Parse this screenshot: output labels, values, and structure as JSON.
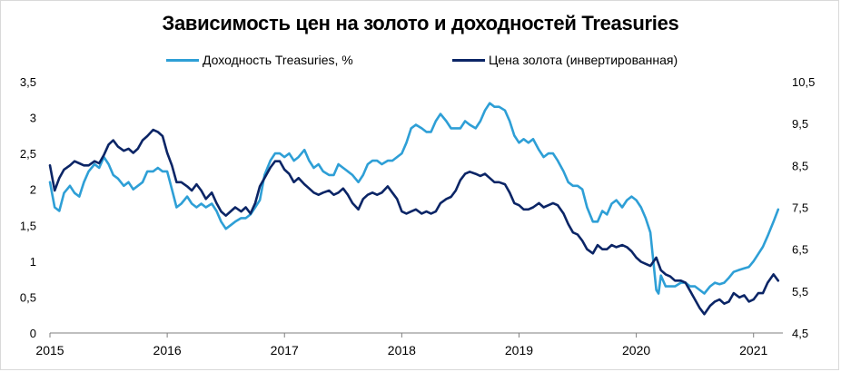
{
  "chart_data": {
    "type": "line",
    "title": "Зависимость цен на золото и доходностей Treasuries",
    "legend_position": "top-center",
    "x_ticks": [
      "2015",
      "2016",
      "2017",
      "2018",
      "2019",
      "2020",
      "2021"
    ],
    "x_range": [
      2015.0,
      2021.25
    ],
    "y_left": {
      "ticks": [
        "0",
        "0,5",
        "1",
        "1,5",
        "2",
        "2,5",
        "3",
        "3,5"
      ],
      "range": [
        0,
        3.5
      ]
    },
    "y_right": {
      "ticks": [
        "4,5",
        "5,5",
        "6,5",
        "7,5",
        "8,5",
        "9,5",
        "10,5"
      ],
      "range": [
        4.5,
        10.5
      ],
      "inverted_series": true
    },
    "grid": false,
    "series": [
      {
        "name": "Доходность Treasuries, %",
        "axis": "left",
        "color": "#2e9fd6",
        "points": [
          [
            2015.0,
            2.1
          ],
          [
            2015.04,
            1.75
          ],
          [
            2015.08,
            1.7
          ],
          [
            2015.12,
            1.95
          ],
          [
            2015.17,
            2.05
          ],
          [
            2015.21,
            1.95
          ],
          [
            2015.25,
            1.9
          ],
          [
            2015.29,
            2.1
          ],
          [
            2015.33,
            2.25
          ],
          [
            2015.38,
            2.35
          ],
          [
            2015.42,
            2.3
          ],
          [
            2015.46,
            2.45
          ],
          [
            2015.5,
            2.35
          ],
          [
            2015.54,
            2.2
          ],
          [
            2015.58,
            2.15
          ],
          [
            2015.63,
            2.05
          ],
          [
            2015.67,
            2.1
          ],
          [
            2015.71,
            2.0
          ],
          [
            2015.75,
            2.05
          ],
          [
            2015.79,
            2.1
          ],
          [
            2015.83,
            2.25
          ],
          [
            2015.88,
            2.25
          ],
          [
            2015.92,
            2.3
          ],
          [
            2015.96,
            2.25
          ],
          [
            2016.0,
            2.25
          ],
          [
            2016.04,
            2.0
          ],
          [
            2016.08,
            1.75
          ],
          [
            2016.12,
            1.8
          ],
          [
            2016.17,
            1.9
          ],
          [
            2016.21,
            1.8
          ],
          [
            2016.25,
            1.75
          ],
          [
            2016.29,
            1.8
          ],
          [
            2016.33,
            1.75
          ],
          [
            2016.38,
            1.8
          ],
          [
            2016.42,
            1.7
          ],
          [
            2016.46,
            1.55
          ],
          [
            2016.5,
            1.45
          ],
          [
            2016.54,
            1.5
          ],
          [
            2016.58,
            1.55
          ],
          [
            2016.63,
            1.6
          ],
          [
            2016.67,
            1.6
          ],
          [
            2016.71,
            1.65
          ],
          [
            2016.75,
            1.75
          ],
          [
            2016.79,
            1.85
          ],
          [
            2016.83,
            2.2
          ],
          [
            2016.88,
            2.4
          ],
          [
            2016.92,
            2.5
          ],
          [
            2016.96,
            2.5
          ],
          [
            2017.0,
            2.45
          ],
          [
            2017.04,
            2.5
          ],
          [
            2017.08,
            2.4
          ],
          [
            2017.12,
            2.45
          ],
          [
            2017.17,
            2.55
          ],
          [
            2017.21,
            2.4
          ],
          [
            2017.25,
            2.3
          ],
          [
            2017.29,
            2.35
          ],
          [
            2017.33,
            2.25
          ],
          [
            2017.38,
            2.2
          ],
          [
            2017.42,
            2.2
          ],
          [
            2017.46,
            2.35
          ],
          [
            2017.5,
            2.3
          ],
          [
            2017.54,
            2.25
          ],
          [
            2017.58,
            2.2
          ],
          [
            2017.63,
            2.1
          ],
          [
            2017.67,
            2.2
          ],
          [
            2017.71,
            2.35
          ],
          [
            2017.75,
            2.4
          ],
          [
            2017.79,
            2.4
          ],
          [
            2017.83,
            2.35
          ],
          [
            2017.88,
            2.4
          ],
          [
            2017.92,
            2.4
          ],
          [
            2017.96,
            2.45
          ],
          [
            2018.0,
            2.5
          ],
          [
            2018.04,
            2.65
          ],
          [
            2018.08,
            2.85
          ],
          [
            2018.12,
            2.9
          ],
          [
            2018.17,
            2.85
          ],
          [
            2018.21,
            2.8
          ],
          [
            2018.25,
            2.8
          ],
          [
            2018.29,
            2.95
          ],
          [
            2018.33,
            3.05
          ],
          [
            2018.38,
            2.95
          ],
          [
            2018.42,
            2.85
          ],
          [
            2018.46,
            2.85
          ],
          [
            2018.5,
            2.85
          ],
          [
            2018.54,
            2.95
          ],
          [
            2018.58,
            2.9
          ],
          [
            2018.63,
            2.85
          ],
          [
            2018.67,
            2.95
          ],
          [
            2018.71,
            3.1
          ],
          [
            2018.75,
            3.2
          ],
          [
            2018.79,
            3.15
          ],
          [
            2018.83,
            3.15
          ],
          [
            2018.88,
            3.1
          ],
          [
            2018.92,
            2.95
          ],
          [
            2018.96,
            2.75
          ],
          [
            2019.0,
            2.65
          ],
          [
            2019.04,
            2.7
          ],
          [
            2019.08,
            2.65
          ],
          [
            2019.12,
            2.7
          ],
          [
            2019.17,
            2.55
          ],
          [
            2019.21,
            2.45
          ],
          [
            2019.25,
            2.5
          ],
          [
            2019.29,
            2.5
          ],
          [
            2019.33,
            2.4
          ],
          [
            2019.38,
            2.25
          ],
          [
            2019.42,
            2.1
          ],
          [
            2019.46,
            2.05
          ],
          [
            2019.5,
            2.05
          ],
          [
            2019.54,
            2.0
          ],
          [
            2019.58,
            1.75
          ],
          [
            2019.63,
            1.55
          ],
          [
            2019.67,
            1.55
          ],
          [
            2019.71,
            1.7
          ],
          [
            2019.75,
            1.65
          ],
          [
            2019.79,
            1.8
          ],
          [
            2019.83,
            1.85
          ],
          [
            2019.88,
            1.75
          ],
          [
            2019.92,
            1.85
          ],
          [
            2019.96,
            1.9
          ],
          [
            2020.0,
            1.85
          ],
          [
            2020.04,
            1.75
          ],
          [
            2020.08,
            1.6
          ],
          [
            2020.12,
            1.4
          ],
          [
            2020.17,
            0.6
          ],
          [
            2020.19,
            0.55
          ],
          [
            2020.21,
            0.8
          ],
          [
            2020.25,
            0.65
          ],
          [
            2020.29,
            0.65
          ],
          [
            2020.33,
            0.65
          ],
          [
            2020.38,
            0.7
          ],
          [
            2020.42,
            0.7
          ],
          [
            2020.46,
            0.65
          ],
          [
            2020.5,
            0.65
          ],
          [
            2020.54,
            0.6
          ],
          [
            2020.58,
            0.55
          ],
          [
            2020.63,
            0.65
          ],
          [
            2020.67,
            0.7
          ],
          [
            2020.71,
            0.68
          ],
          [
            2020.75,
            0.7
          ],
          [
            2020.79,
            0.77
          ],
          [
            2020.83,
            0.85
          ],
          [
            2020.88,
            0.88
          ],
          [
            2020.92,
            0.9
          ],
          [
            2020.96,
            0.92
          ],
          [
            2021.0,
            1.0
          ],
          [
            2021.04,
            1.1
          ],
          [
            2021.08,
            1.2
          ],
          [
            2021.12,
            1.35
          ],
          [
            2021.17,
            1.55
          ],
          [
            2021.21,
            1.72
          ]
        ]
      },
      {
        "name": "Цена золота (инвертированная)",
        "axis": "right",
        "color": "#0b2566",
        "points": [
          [
            2015.0,
            8.5
          ],
          [
            2015.04,
            7.9
          ],
          [
            2015.08,
            8.2
          ],
          [
            2015.12,
            8.4
          ],
          [
            2015.17,
            8.5
          ],
          [
            2015.21,
            8.6
          ],
          [
            2015.25,
            8.55
          ],
          [
            2015.29,
            8.5
          ],
          [
            2015.33,
            8.5
          ],
          [
            2015.38,
            8.6
          ],
          [
            2015.42,
            8.55
          ],
          [
            2015.46,
            8.75
          ],
          [
            2015.5,
            9.0
          ],
          [
            2015.54,
            9.1
          ],
          [
            2015.58,
            8.95
          ],
          [
            2015.63,
            8.85
          ],
          [
            2015.67,
            8.9
          ],
          [
            2015.71,
            8.8
          ],
          [
            2015.75,
            8.9
          ],
          [
            2015.79,
            9.1
          ],
          [
            2015.83,
            9.2
          ],
          [
            2015.88,
            9.35
          ],
          [
            2015.92,
            9.3
          ],
          [
            2015.96,
            9.2
          ],
          [
            2016.0,
            8.8
          ],
          [
            2016.04,
            8.5
          ],
          [
            2016.08,
            8.1
          ],
          [
            2016.12,
            8.1
          ],
          [
            2016.17,
            8.0
          ],
          [
            2016.21,
            7.9
          ],
          [
            2016.25,
            8.05
          ],
          [
            2016.29,
            7.9
          ],
          [
            2016.33,
            7.7
          ],
          [
            2016.38,
            7.85
          ],
          [
            2016.42,
            7.6
          ],
          [
            2016.46,
            7.4
          ],
          [
            2016.5,
            7.3
          ],
          [
            2016.54,
            7.4
          ],
          [
            2016.58,
            7.5
          ],
          [
            2016.63,
            7.4
          ],
          [
            2016.67,
            7.5
          ],
          [
            2016.71,
            7.35
          ],
          [
            2016.75,
            7.6
          ],
          [
            2016.79,
            8.0
          ],
          [
            2016.83,
            8.2
          ],
          [
            2016.88,
            8.45
          ],
          [
            2016.92,
            8.6
          ],
          [
            2016.96,
            8.6
          ],
          [
            2017.0,
            8.4
          ],
          [
            2017.04,
            8.3
          ],
          [
            2017.08,
            8.1
          ],
          [
            2017.12,
            8.2
          ],
          [
            2017.17,
            8.05
          ],
          [
            2017.21,
            7.95
          ],
          [
            2017.25,
            7.85
          ],
          [
            2017.29,
            7.8
          ],
          [
            2017.33,
            7.85
          ],
          [
            2017.38,
            7.9
          ],
          [
            2017.42,
            7.8
          ],
          [
            2017.46,
            7.85
          ],
          [
            2017.5,
            7.95
          ],
          [
            2017.54,
            7.8
          ],
          [
            2017.58,
            7.6
          ],
          [
            2017.63,
            7.45
          ],
          [
            2017.67,
            7.7
          ],
          [
            2017.71,
            7.8
          ],
          [
            2017.75,
            7.85
          ],
          [
            2017.79,
            7.8
          ],
          [
            2017.83,
            7.85
          ],
          [
            2017.88,
            8.0
          ],
          [
            2017.92,
            7.85
          ],
          [
            2017.96,
            7.7
          ],
          [
            2018.0,
            7.4
          ],
          [
            2018.04,
            7.35
          ],
          [
            2018.08,
            7.4
          ],
          [
            2018.12,
            7.45
          ],
          [
            2018.17,
            7.35
          ],
          [
            2018.21,
            7.4
          ],
          [
            2018.25,
            7.35
          ],
          [
            2018.29,
            7.4
          ],
          [
            2018.33,
            7.6
          ],
          [
            2018.38,
            7.7
          ],
          [
            2018.42,
            7.75
          ],
          [
            2018.46,
            7.9
          ],
          [
            2018.5,
            8.15
          ],
          [
            2018.54,
            8.3
          ],
          [
            2018.58,
            8.35
          ],
          [
            2018.63,
            8.3
          ],
          [
            2018.67,
            8.25
          ],
          [
            2018.71,
            8.3
          ],
          [
            2018.75,
            8.2
          ],
          [
            2018.79,
            8.1
          ],
          [
            2018.83,
            8.1
          ],
          [
            2018.88,
            8.05
          ],
          [
            2018.92,
            7.85
          ],
          [
            2018.96,
            7.6
          ],
          [
            2019.0,
            7.55
          ],
          [
            2019.04,
            7.45
          ],
          [
            2019.08,
            7.45
          ],
          [
            2019.12,
            7.5
          ],
          [
            2019.17,
            7.6
          ],
          [
            2019.21,
            7.5
          ],
          [
            2019.25,
            7.55
          ],
          [
            2019.29,
            7.6
          ],
          [
            2019.33,
            7.55
          ],
          [
            2019.38,
            7.35
          ],
          [
            2019.42,
            7.1
          ],
          [
            2019.46,
            6.9
          ],
          [
            2019.5,
            6.85
          ],
          [
            2019.54,
            6.7
          ],
          [
            2019.58,
            6.5
          ],
          [
            2019.63,
            6.4
          ],
          [
            2019.67,
            6.6
          ],
          [
            2019.71,
            6.5
          ],
          [
            2019.75,
            6.5
          ],
          [
            2019.79,
            6.6
          ],
          [
            2019.83,
            6.55
          ],
          [
            2019.88,
            6.6
          ],
          [
            2019.92,
            6.55
          ],
          [
            2019.96,
            6.45
          ],
          [
            2020.0,
            6.3
          ],
          [
            2020.04,
            6.2
          ],
          [
            2020.08,
            6.15
          ],
          [
            2020.12,
            6.1
          ],
          [
            2020.17,
            6.3
          ],
          [
            2020.21,
            6.0
          ],
          [
            2020.25,
            5.9
          ],
          [
            2020.29,
            5.85
          ],
          [
            2020.33,
            5.75
          ],
          [
            2020.38,
            5.75
          ],
          [
            2020.42,
            5.7
          ],
          [
            2020.46,
            5.5
          ],
          [
            2020.5,
            5.3
          ],
          [
            2020.54,
            5.1
          ],
          [
            2020.58,
            4.95
          ],
          [
            2020.63,
            5.15
          ],
          [
            2020.67,
            5.25
          ],
          [
            2020.71,
            5.3
          ],
          [
            2020.75,
            5.2
          ],
          [
            2020.79,
            5.25
          ],
          [
            2020.83,
            5.45
          ],
          [
            2020.88,
            5.35
          ],
          [
            2020.92,
            5.4
          ],
          [
            2020.96,
            5.25
          ],
          [
            2021.0,
            5.3
          ],
          [
            2021.04,
            5.45
          ],
          [
            2021.08,
            5.45
          ],
          [
            2021.12,
            5.7
          ],
          [
            2021.17,
            5.9
          ],
          [
            2021.21,
            5.75
          ]
        ]
      }
    ]
  }
}
